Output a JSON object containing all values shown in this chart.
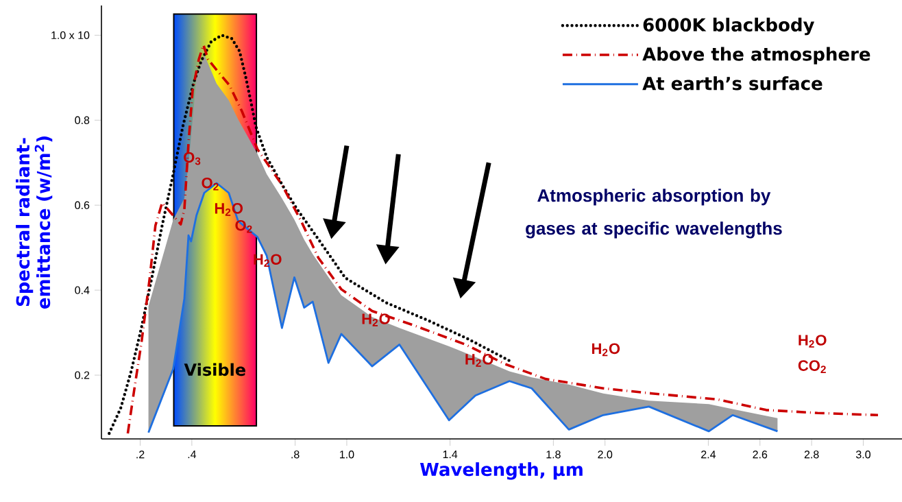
{
  "chart_data": {
    "type": "line",
    "xlabel": "Wavelength, µm",
    "ylabel": "Spectral radiant-emittance (w/m$^{2}$)",
    "xlim": [
      0.05,
      3.15
    ],
    "ylim": [
      0.05,
      1.07
    ],
    "xticks": [
      {
        "value": 0.2,
        "label": ".2"
      },
      {
        "value": 0.4,
        "label": ".4"
      },
      {
        "value": 0.8,
        "label": ".8"
      },
      {
        "value": 1.0,
        "label": "1.0"
      },
      1.4,
      1.8,
      {
        "value": 2.0,
        "label": "2.0"
      },
      2.4,
      2.6,
      2.8,
      {
        "value": 3.0,
        "label": "3.0"
      }
    ],
    "yticks": [
      0.2,
      0.4,
      0.6,
      0.8,
      {
        "value": 1.0,
        "label": "1.0 x 10"
      }
    ],
    "legend": "top right",
    "series": [
      {
        "name": "6000K blackbody",
        "color": "#000000",
        "line_style": "dotted",
        "x": [
          0.08,
          0.125,
          0.165,
          0.205,
          0.245,
          0.285,
          0.325,
          0.365,
          0.406,
          0.436,
          0.475,
          0.516,
          0.555,
          0.585,
          0.609,
          0.63,
          0.648,
          0.69,
          0.75,
          0.806,
          0.89,
          0.994,
          1.151,
          1.314,
          1.467,
          1.63
        ],
        "values": [
          0.063,
          0.123,
          0.209,
          0.312,
          0.429,
          0.552,
          0.665,
          0.785,
          0.886,
          0.939,
          0.985,
          1.0,
          0.992,
          0.962,
          0.901,
          0.84,
          0.785,
          0.713,
          0.648,
          0.592,
          0.52,
          0.429,
          0.371,
          0.329,
          0.286,
          0.234
        ]
      },
      {
        "name": "Above the atmosphere",
        "color": "#cc0000",
        "line_style": "dashdot",
        "x": [
          0.152,
          0.179,
          0.205,
          0.237,
          0.259,
          0.285,
          0.357,
          0.371,
          0.387,
          0.403,
          0.427,
          0.445,
          0.463,
          0.499,
          0.546,
          0.594,
          0.654,
          0.749,
          0.823,
          0.89,
          0.979,
          1.098,
          1.261,
          1.46,
          1.614,
          1.77,
          1.993,
          2.181,
          2.434,
          2.624,
          2.823,
          3.057
        ],
        "values": [
          0.063,
          0.174,
          0.277,
          0.429,
          0.552,
          0.606,
          0.555,
          0.59,
          0.745,
          0.87,
          0.943,
          0.977,
          0.943,
          0.916,
          0.882,
          0.821,
          0.732,
          0.648,
          0.563,
          0.476,
          0.402,
          0.351,
          0.317,
          0.272,
          0.226,
          0.191,
          0.169,
          0.157,
          0.143,
          0.118,
          0.111,
          0.106
        ]
      },
      {
        "name": "At earth’s surface",
        "color": "#1e6fe0",
        "line_style": "solid",
        "x": [
          0.232,
          0.328,
          0.371,
          0.387,
          0.397,
          0.418,
          0.448,
          0.496,
          0.543,
          0.579,
          0.654,
          0.69,
          0.749,
          0.797,
          0.835,
          0.868,
          0.929,
          0.979,
          1.098,
          1.204,
          1.396,
          1.498,
          1.63,
          1.716,
          1.86,
          1.993,
          2.17,
          2.402,
          2.494,
          2.668
        ],
        "values": [
          0.065,
          0.215,
          0.38,
          0.529,
          0.515,
          0.576,
          0.629,
          0.652,
          0.629,
          0.563,
          0.525,
          0.481,
          0.311,
          0.43,
          0.359,
          0.373,
          0.229,
          0.297,
          0.221,
          0.272,
          0.094,
          0.152,
          0.186,
          0.169,
          0.072,
          0.106,
          0.126,
          0.068,
          0.106,
          0.068
        ],
        "lower": [
          0.065,
          0.215,
          0.38,
          0.529,
          0.515,
          0.576,
          0.629,
          0.652,
          0.629,
          0.563,
          0.525,
          0.481,
          0.311,
          0.43,
          0.359,
          0.373,
          0.229,
          0.297,
          0.221,
          0.272,
          0.094,
          0.152,
          0.186,
          0.169,
          0.072,
          0.106,
          0.126,
          0.068,
          0.106,
          0.068
        ],
        "upper": [
          0.362,
          0.566,
          0.616,
          0.697,
          0.761,
          0.901,
          0.954,
          0.886,
          0.847,
          0.802,
          0.721,
          0.673,
          0.616,
          0.566,
          0.519,
          0.485,
          0.431,
          0.388,
          0.337,
          0.311,
          0.268,
          0.243,
          0.209,
          0.195,
          0.178,
          0.157,
          0.14,
          0.132,
          0.12,
          0.099
        ]
      }
    ],
    "bands": [
      {
        "axis": "x",
        "from": 0.33,
        "to": 0.65,
        "label": "Visible",
        "color": "#ffff00"
      }
    ],
    "annotations": [
      "O$_{3}$",
      "O$_{2}$",
      "H$_{2}$O",
      "O$_{2}$",
      "H$_{2}$O",
      "H$_{2}$O",
      "H$_{2}$O",
      "H$_{2}$O",
      "H$_{2}$O",
      "CO$_{2}$",
      "Atmospheric absorption by gases at specific wavelengths"
    ]
  }
}
